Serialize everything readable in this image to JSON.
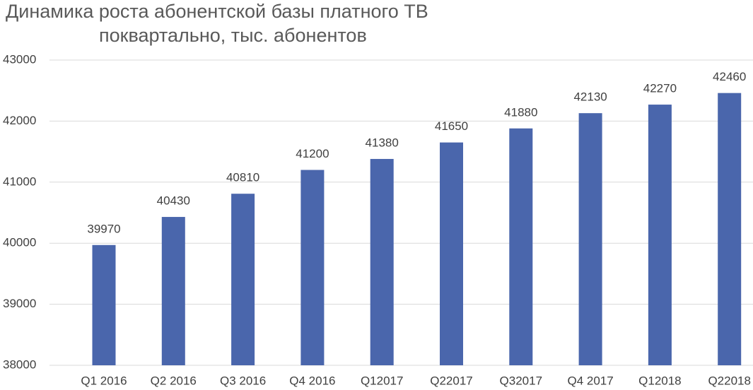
{
  "chart_data": {
    "type": "bar",
    "title": "Динамика роста абонентской базы платного ТВ",
    "subtitle": "поквартально, тыс. абонентов",
    "categories": [
      "Q1 2016",
      "Q2 2016",
      "Q3 2016",
      "Q4 2016",
      "Q12017",
      "Q22017",
      "Q32017",
      "Q4 2017",
      "Q12018",
      "Q22018"
    ],
    "values": [
      39970,
      40430,
      40810,
      41200,
      41380,
      41650,
      41880,
      42130,
      42270,
      42460
    ],
    "color": "#4a66ac",
    "ylim": [
      38000,
      43000
    ],
    "yticks": [
      38000,
      39000,
      40000,
      41000,
      42000,
      43000
    ],
    "grid": true
  }
}
